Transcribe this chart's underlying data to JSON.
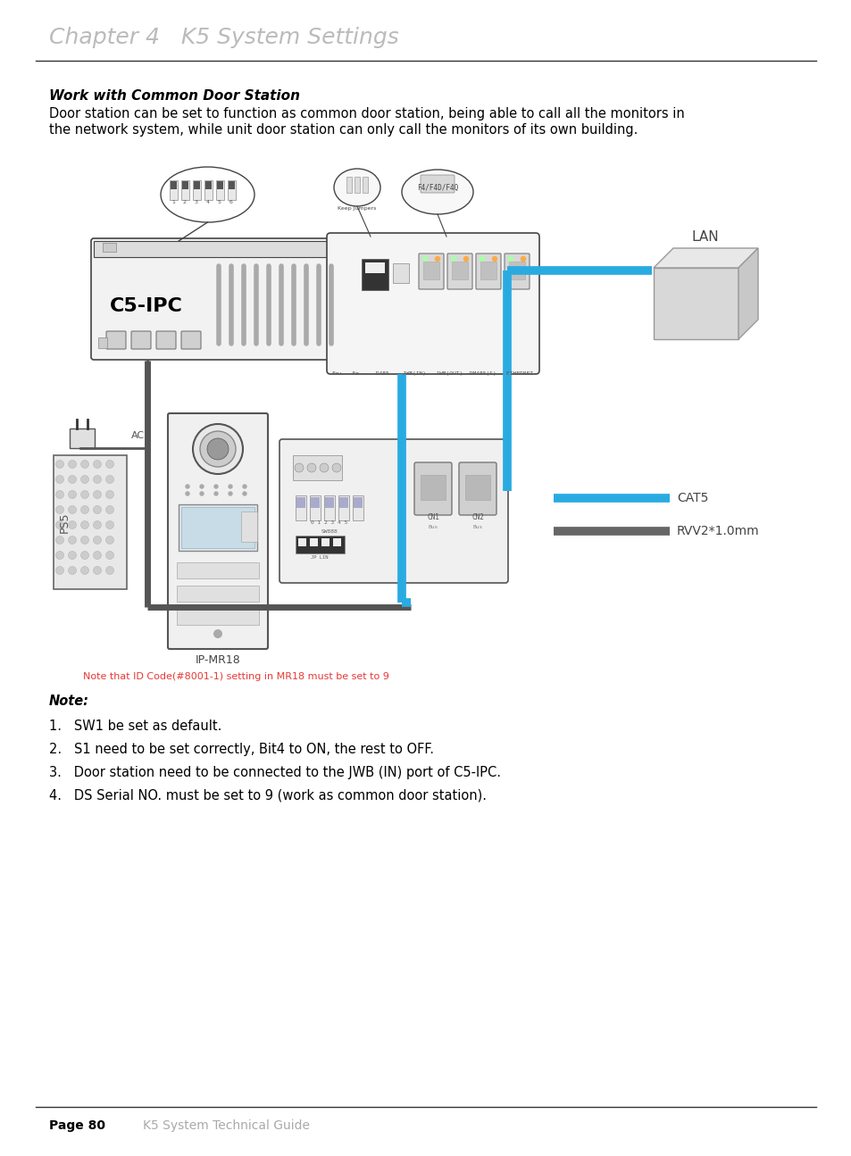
{
  "title": "Chapter 4   K5 System Settings",
  "title_color": "#bbbbbb",
  "title_fontsize": 18,
  "section_title": "Work with Common Door Station",
  "section_title_fontsize": 11,
  "body_text_line1": "Door station can be set to function as common door station, being able to call all the monitors in",
  "body_text_line2": "the network system, while unit door station can only call the monitors of its own building.",
  "body_fontsize": 10.5,
  "note_title": "Note:",
  "note_items": [
    "SW1 be set as default.",
    "S1 need to be set correctly, Bit4 to ON, the rest to OFF.",
    "Door station need to be connected to the JWB (IN) port of C5-IPC.",
    "DS Serial NO. must be set to 9 (work as common door station)."
  ],
  "note_fontsize": 10.5,
  "c5ipc_label": "C5-IPC",
  "lan_label": "LAN",
  "cat5_label": "CAT5",
  "rvv_label": "RVV2*1.0mm",
  "ipmr18_label": "IP-MR18",
  "red_note": "Note that ID Code(#8001-1) setting in MR18 must be set to 9",
  "cat5_color": "#29abe2",
  "rvv_color": "#666666",
  "line_color": "#444444",
  "page_label": "Page 80",
  "page_sub": "K5 System Technical Guide",
  "background": "#ffffff"
}
